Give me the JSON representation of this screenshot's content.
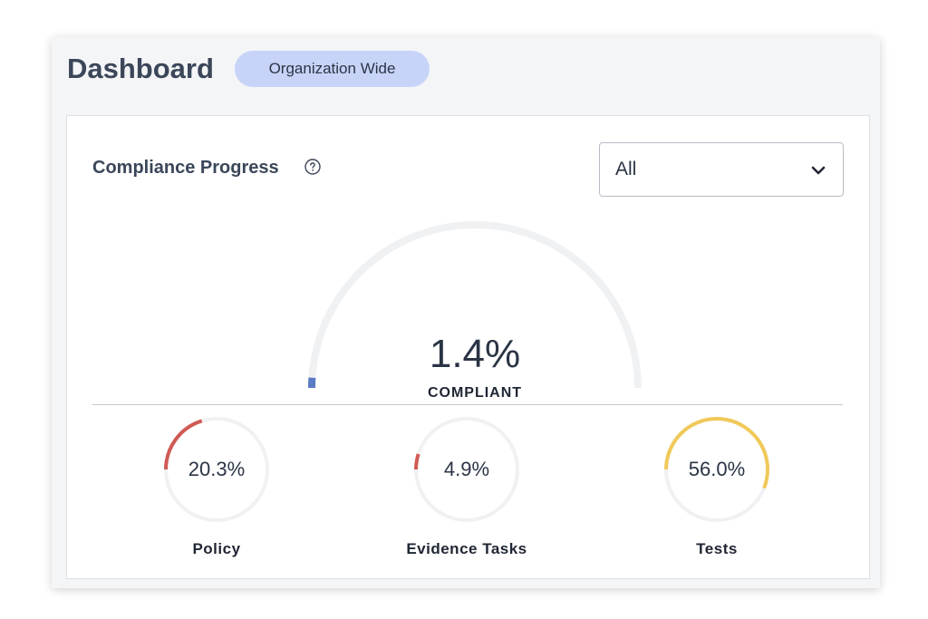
{
  "header": {
    "title": "Dashboard",
    "badge": "Organization Wide"
  },
  "compliance": {
    "title": "Compliance Progress",
    "help_icon": "question-circle-icon",
    "filter": {
      "selected": "All",
      "icon": "chevron-down-icon"
    },
    "overall": {
      "value_text": "1.4%",
      "label": "COMPLIANT",
      "fraction": 0.014
    },
    "metrics": [
      {
        "name": "Policy",
        "value_text": "20.3%",
        "fraction": 0.203,
        "color": "#d05a55"
      },
      {
        "name": "Evidence Tasks",
        "value_text": "4.9%",
        "fraction": 0.049,
        "color": "#d05a55"
      },
      {
        "name": "Tests",
        "value_text": "56.0%",
        "fraction": 0.56,
        "color": "#f0c95a"
      }
    ]
  },
  "colors": {
    "gauge_track": "#f0f1f3",
    "gauge_fill": "#5b7cc4",
    "ring_track": "#f0f1f3"
  }
}
